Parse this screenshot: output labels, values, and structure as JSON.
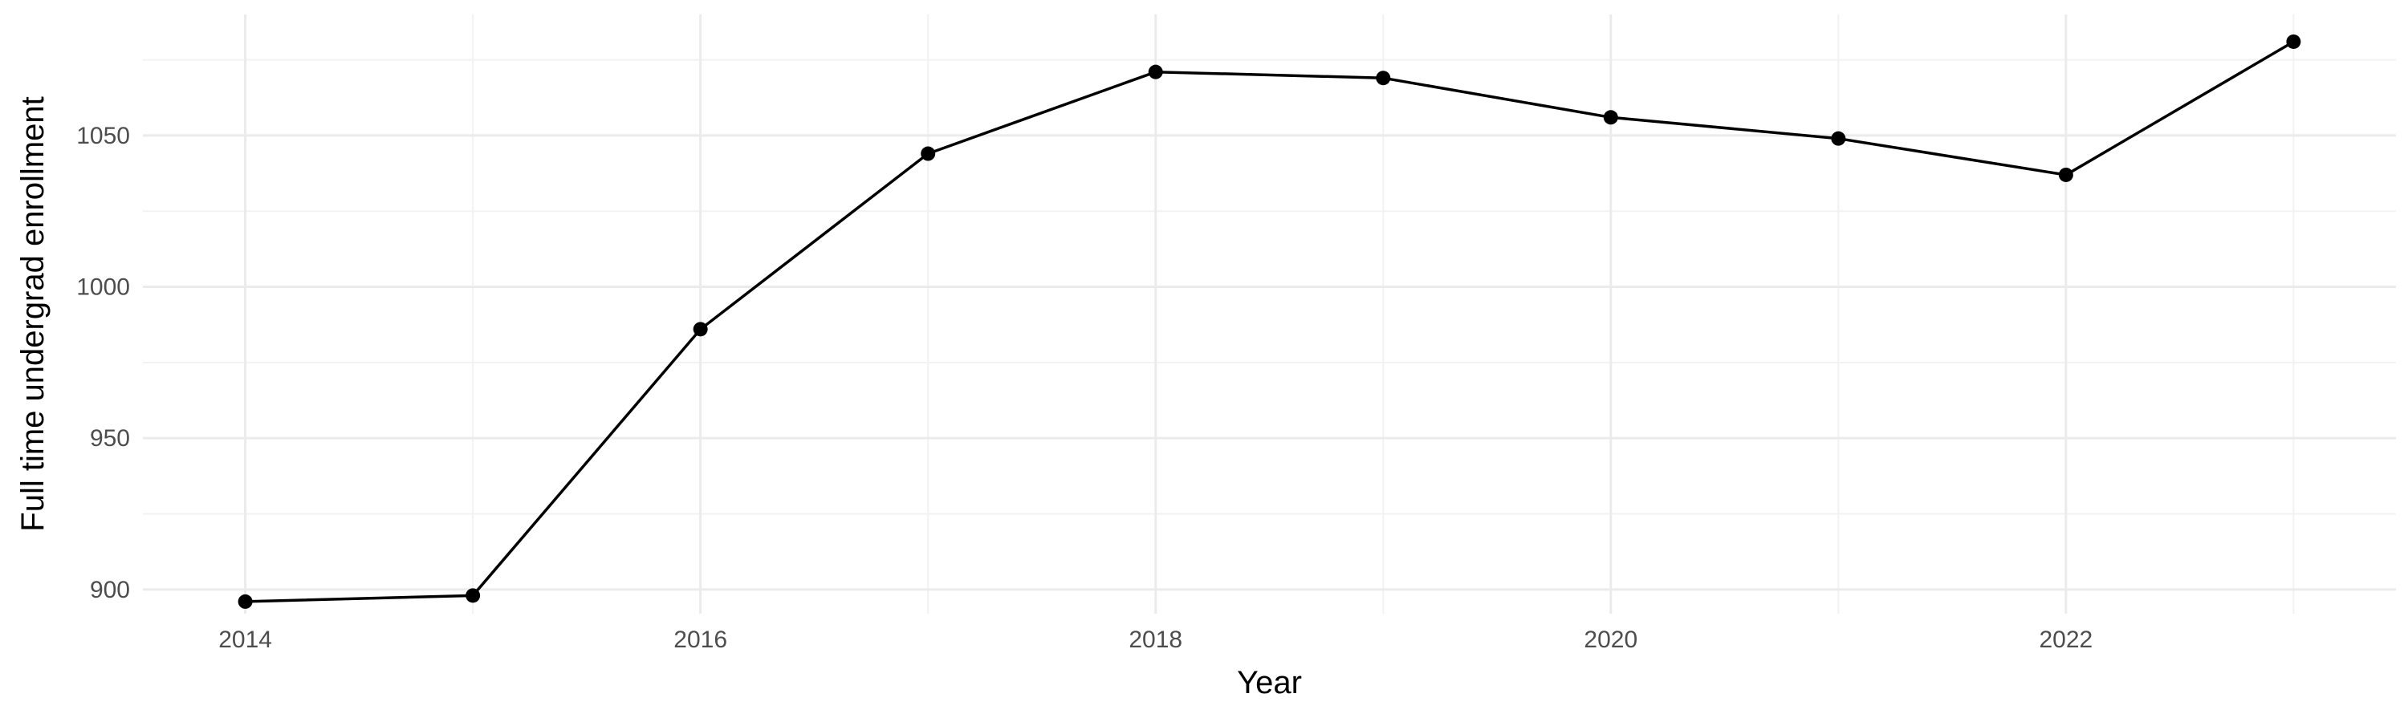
{
  "chart_data": {
    "type": "line",
    "title": "",
    "xlabel": "Year",
    "ylabel": "Full time undergrad enrollment",
    "x": [
      2014,
      2015,
      2016,
      2017,
      2018,
      2019,
      2020,
      2021,
      2022,
      2023
    ],
    "series": [
      {
        "values": [
          896,
          898,
          986,
          1044,
          1071,
          1069,
          1056,
          1049,
          1037,
          1081
        ]
      }
    ],
    "xlim": [
      2013.55,
      2023.45
    ],
    "ylim": [
      892,
      1090
    ],
    "x_ticks": [
      2014,
      2016,
      2018,
      2020,
      2022
    ],
    "x_tick_labels": [
      "2014",
      "2016",
      "2018",
      "2020",
      "2022"
    ],
    "x_minor_ticks": [
      2015,
      2017,
      2019,
      2021,
      2023
    ],
    "y_ticks": [
      900,
      950,
      1000,
      1050
    ],
    "y_tick_labels": [
      "900",
      "950",
      "1000",
      "1050"
    ],
    "y_minor_ticks": [
      925,
      975,
      1025,
      1075
    ],
    "grid": true,
    "legend": "none",
    "line_color": "#000000",
    "grid_color": "#ebebeb"
  }
}
